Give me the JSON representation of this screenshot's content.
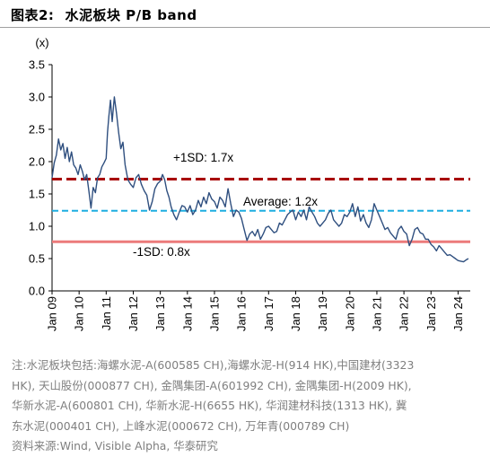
{
  "title": {
    "label": "图表2:",
    "text": "水泥板块 P/B band"
  },
  "chart_data": {
    "type": "line",
    "ylabel": "(x)",
    "ylim": [
      0.0,
      3.5
    ],
    "y_ticks": [
      "0.0",
      "0.5",
      "1.0",
      "1.5",
      "2.0",
      "2.5",
      "3.0",
      "3.5"
    ],
    "x_ticks": [
      "Jan 09",
      "Jan 10",
      "Jan 11",
      "Jan 12",
      "Jan 13",
      "Jan 14",
      "Jan 15",
      "Jan 16",
      "Jan 17",
      "Jan 18",
      "Jan 19",
      "Jan 20",
      "Jan 21",
      "Jan 22",
      "Jan 23",
      "Jan 24"
    ],
    "xlim": [
      2009.0,
      2024.45
    ],
    "grid": false,
    "series": [
      {
        "color": "#2f4f7f",
        "x": [
          2009.0,
          2009.08,
          2009.16,
          2009.24,
          2009.32,
          2009.4,
          2009.48,
          2009.56,
          2009.64,
          2009.72,
          2009.8,
          2009.88,
          2009.96,
          2010.04,
          2010.12,
          2010.2,
          2010.28,
          2010.36,
          2010.44,
          2010.52,
          2010.6,
          2010.68,
          2010.76,
          2010.84,
          2010.92,
          2011.0,
          2011.05,
          2011.1,
          2011.16,
          2011.22,
          2011.3,
          2011.38,
          2011.46,
          2011.54,
          2011.62,
          2011.7,
          2011.8,
          2011.9,
          2012.0,
          2012.1,
          2012.2,
          2012.3,
          2012.4,
          2012.5,
          2012.6,
          2012.7,
          2012.8,
          2012.9,
          2013.0,
          2013.08,
          2013.16,
          2013.24,
          2013.32,
          2013.4,
          2013.5,
          2013.6,
          2013.7,
          2013.8,
          2013.9,
          2014.0,
          2014.1,
          2014.2,
          2014.3,
          2014.4,
          2014.5,
          2014.6,
          2014.7,
          2014.8,
          2014.9,
          2015.0,
          2015.1,
          2015.2,
          2015.3,
          2015.4,
          2015.5,
          2015.6,
          2015.7,
          2015.8,
          2015.9,
          2016.0,
          2016.1,
          2016.2,
          2016.3,
          2016.4,
          2016.5,
          2016.6,
          2016.7,
          2016.8,
          2016.9,
          2017.0,
          2017.1,
          2017.2,
          2017.3,
          2017.4,
          2017.5,
          2017.6,
          2017.7,
          2017.8,
          2017.9,
          2018.0,
          2018.1,
          2018.2,
          2018.3,
          2018.4,
          2018.5,
          2018.6,
          2018.7,
          2018.8,
          2018.9,
          2019.0,
          2019.1,
          2019.2,
          2019.3,
          2019.4,
          2019.5,
          2019.6,
          2019.7,
          2019.8,
          2019.9,
          2020.0,
          2020.1,
          2020.2,
          2020.3,
          2020.4,
          2020.5,
          2020.6,
          2020.7,
          2020.8,
          2020.9,
          2021.0,
          2021.1,
          2021.2,
          2021.3,
          2021.4,
          2021.5,
          2021.6,
          2021.7,
          2021.8,
          2021.9,
          2022.0,
          2022.1,
          2022.2,
          2022.3,
          2022.4,
          2022.5,
          2022.6,
          2022.7,
          2022.8,
          2022.9,
          2023.0,
          2023.1,
          2023.2,
          2023.3,
          2023.4,
          2023.5,
          2023.6,
          2023.7,
          2023.8,
          2023.9,
          2024.0,
          2024.1,
          2024.2,
          2024.3,
          2024.38
        ],
        "y": [
          1.75,
          1.98,
          2.1,
          2.35,
          2.18,
          2.28,
          2.05,
          2.22,
          2.0,
          2.15,
          1.95,
          1.9,
          1.8,
          1.95,
          1.85,
          1.72,
          1.8,
          1.55,
          1.28,
          1.6,
          1.52,
          1.75,
          1.8,
          1.92,
          1.98,
          2.05,
          2.45,
          2.7,
          2.95,
          2.62,
          3.0,
          2.75,
          2.45,
          2.2,
          2.3,
          1.95,
          1.72,
          1.65,
          1.6,
          1.75,
          1.8,
          1.65,
          1.55,
          1.48,
          1.25,
          1.38,
          1.58,
          1.66,
          1.7,
          1.8,
          1.72,
          1.55,
          1.45,
          1.3,
          1.18,
          1.1,
          1.22,
          1.32,
          1.3,
          1.22,
          1.32,
          1.18,
          1.25,
          1.4,
          1.3,
          1.45,
          1.35,
          1.52,
          1.42,
          1.38,
          1.28,
          1.45,
          1.4,
          1.3,
          1.58,
          1.35,
          1.15,
          1.25,
          1.22,
          1.12,
          0.95,
          0.78,
          0.88,
          0.92,
          0.85,
          0.95,
          0.8,
          0.88,
          0.98,
          1.0,
          0.95,
          0.9,
          0.92,
          1.05,
          1.02,
          1.1,
          1.18,
          1.22,
          1.25,
          1.1,
          1.22,
          1.15,
          1.25,
          1.1,
          1.3,
          1.22,
          1.15,
          1.05,
          1.0,
          1.05,
          1.1,
          1.2,
          1.25,
          1.1,
          1.05,
          1.0,
          1.05,
          1.18,
          1.15,
          1.22,
          1.35,
          1.15,
          1.3,
          1.08,
          1.18,
          1.05,
          0.98,
          1.1,
          1.35,
          1.25,
          1.15,
          1.05,
          0.95,
          0.98,
          0.9,
          0.85,
          0.8,
          0.95,
          1.0,
          0.92,
          0.88,
          0.7,
          0.8,
          0.95,
          0.98,
          0.9,
          0.88,
          0.8,
          0.8,
          0.72,
          0.68,
          0.62,
          0.7,
          0.65,
          0.6,
          0.55,
          0.56,
          0.53,
          0.5,
          0.47,
          0.46,
          0.45,
          0.48,
          0.5
        ]
      }
    ],
    "bands": [
      {
        "label": "+1SD: 1.7x",
        "value": 1.73,
        "color": "#a80000",
        "style": "dashed"
      },
      {
        "label": "Average: 1.2x",
        "value": 1.24,
        "color": "#1eaee0",
        "style": "dashed"
      },
      {
        "label": "-1SD: 0.8x",
        "value": 0.76,
        "color": "#ec7b7b",
        "style": "solid"
      }
    ]
  },
  "notes": [
    "注:水泥板块包括:海螺水泥-A(600585 CH),海螺水泥-H(914 HK),中国建材(3323",
    "HK), 天山股份(000877 CH), 金隅集团-A(601992 CH), 金隅集团-H(2009 HK),",
    "华新水泥-A(600801 CH), 华新水泥-H(6655 HK), 华润建材科技(1313 HK), 冀",
    "东水泥(000401 CH), 上峰水泥(000672 CH), 万年青(000789 CH)",
    "资料来源:Wind, Visible Alpha, 华泰研究"
  ]
}
